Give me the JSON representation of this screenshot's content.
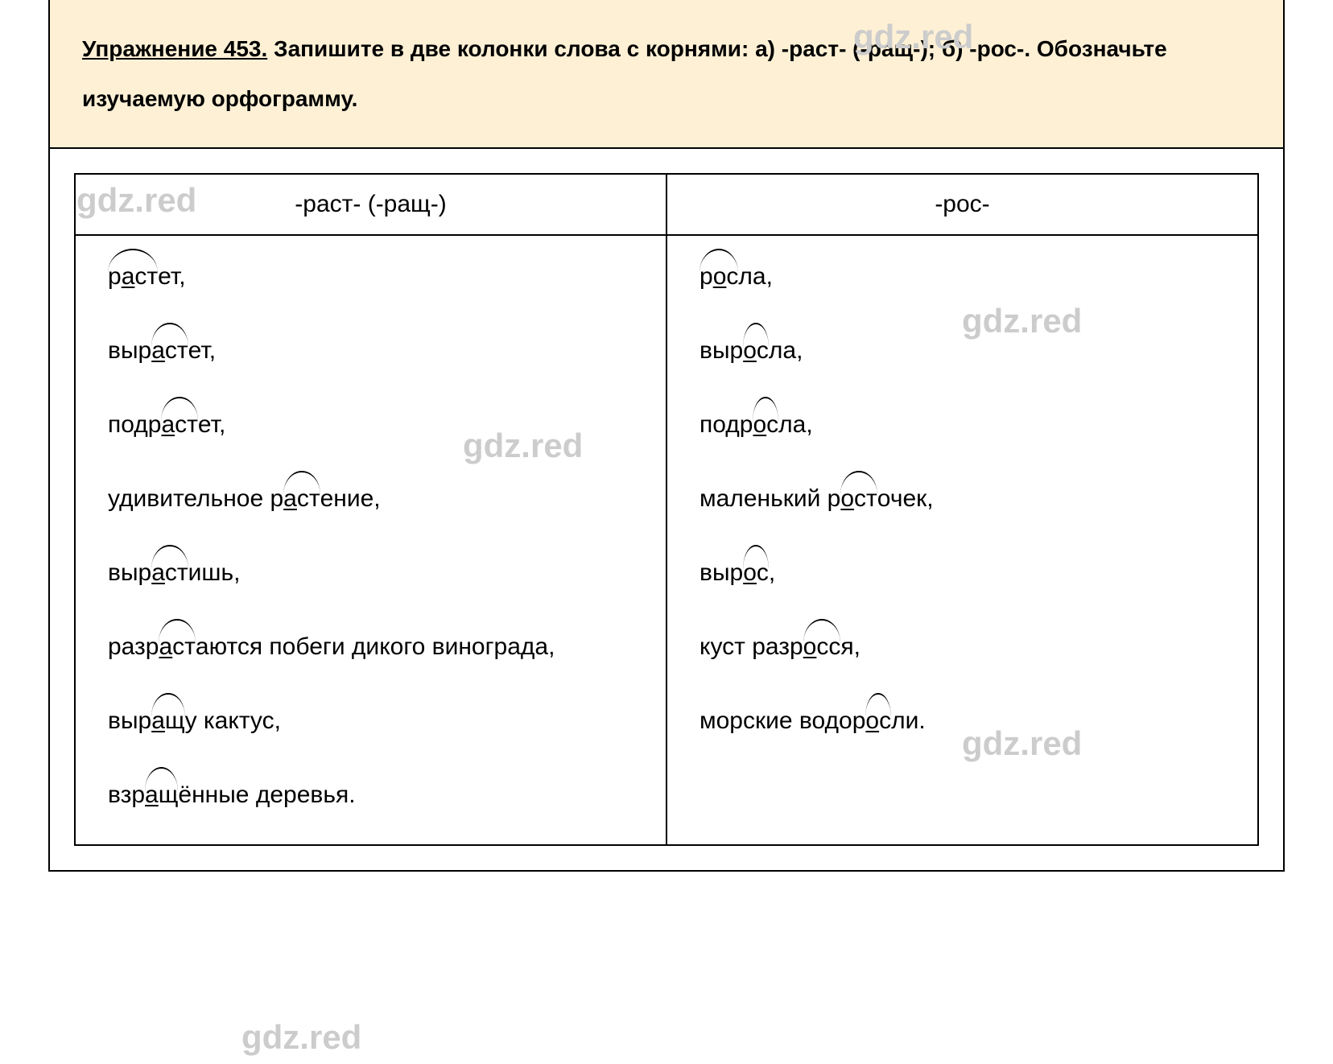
{
  "watermark_text": "gdz.red",
  "header": {
    "exercise_label": "Упражнение 453.",
    "exercise_instruction": " Запишите в две колонки слова с корнями: а) -раст- (-ращ-); б) -рос-. Обозначьте изучаемую орфограмму."
  },
  "table": {
    "column1_header": "-раст- (-ращ-)",
    "column2_header": "-рос-",
    "column1": {
      "w1": {
        "pre": "р",
        "orth": "а",
        "root_rest": "ст",
        "post": "ет,"
      },
      "w2": {
        "pre": "выр",
        "orth": "а",
        "root_rest": "ст",
        "post": "ет,"
      },
      "w3": {
        "pre": "подр",
        "orth": "а",
        "root_rest": "ст",
        "post": "ет,"
      },
      "w4": {
        "pre": "удивительное р",
        "orth": "а",
        "root_rest": "ст",
        "post": "ение,"
      },
      "w5": {
        "pre": "выр",
        "orth": "а",
        "root_rest": "ст",
        "post": "ишь,"
      },
      "w6": {
        "pre": "разр",
        "orth": "а",
        "root_rest": "ст",
        "post": "аются побеги дикого винограда,"
      },
      "w7": {
        "pre": "выр",
        "orth": "а",
        "root_rest": "щ",
        "post": "у кактус,"
      },
      "w8": {
        "pre": "взр",
        "orth": "а",
        "root_rest": "щ",
        "post": "ённые деревья."
      }
    },
    "column2": {
      "w1": {
        "pre": "р",
        "orth": "о",
        "root_rest": "с",
        "post": "ла,"
      },
      "w2": {
        "pre": "выр",
        "orth": "о",
        "root_rest": "с",
        "post": "ла,"
      },
      "w3": {
        "pre": "подр",
        "orth": "о",
        "root_rest": "с",
        "post": "ла,"
      },
      "w4": {
        "pre": "маленький р",
        "orth": "о",
        "root_rest": "ст",
        "post": "очек,"
      },
      "w5": {
        "pre": "выр",
        "orth": "о",
        "root_rest": "с",
        "post": ","
      },
      "w6": {
        "pre": "куст разр",
        "orth": "о",
        "root_rest": "сс",
        "post": "я,"
      },
      "w7": {
        "pre": "морские водор",
        "orth": "о",
        "root_rest": "с",
        "post": "ли."
      }
    }
  },
  "colors": {
    "header_bg": "#fdf0d5",
    "border": "#000000",
    "watermark": "#cccccc",
    "text": "#000000"
  },
  "typography": {
    "body_fontsize": 30,
    "header_fontsize": 28,
    "watermark_fontsize": 42
  }
}
